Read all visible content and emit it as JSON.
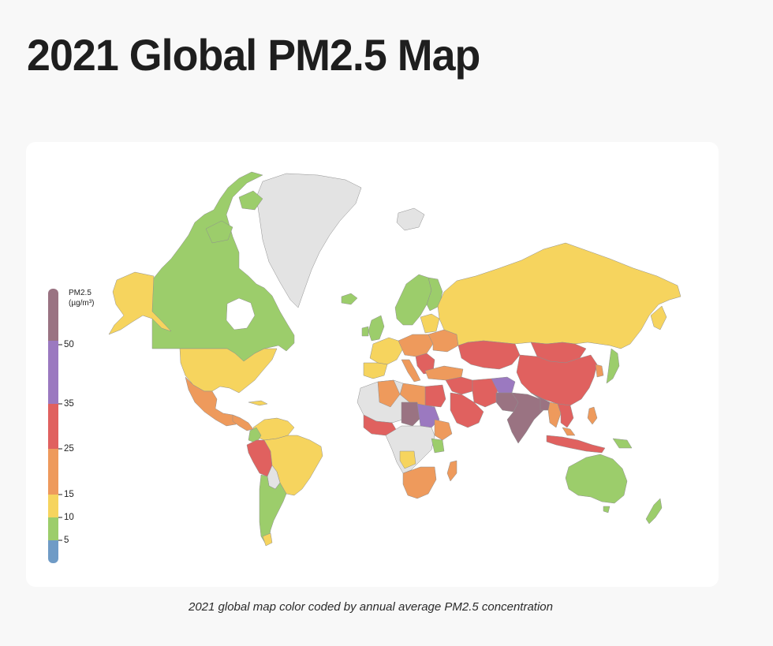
{
  "title": "2021 Global PM2.5 Map",
  "caption": "2021 global map color coded by annual average PM2.5 concentration",
  "legend": {
    "title_line1": "PM2.5",
    "title_line2": "(µg/m³)",
    "ticks": [
      "50",
      "35",
      "25",
      "15",
      "10",
      "5"
    ],
    "bins": [
      {
        "range": "<5",
        "color": "#6f9bc6"
      },
      {
        "range": "5-10",
        "color": "#9ccd6b"
      },
      {
        "range": "10-15",
        "color": "#f6d45e"
      },
      {
        "range": "15-25",
        "color": "#ee9a5c"
      },
      {
        "range": "25-35",
        "color": "#e0615f"
      },
      {
        "range": "35-50",
        "color": "#9b79c0"
      },
      {
        "range": ">50",
        "color": "#9a7382"
      }
    ]
  },
  "colors": {
    "no_data": "#e3e3e3",
    "border": "#8a8a8a"
  }
}
